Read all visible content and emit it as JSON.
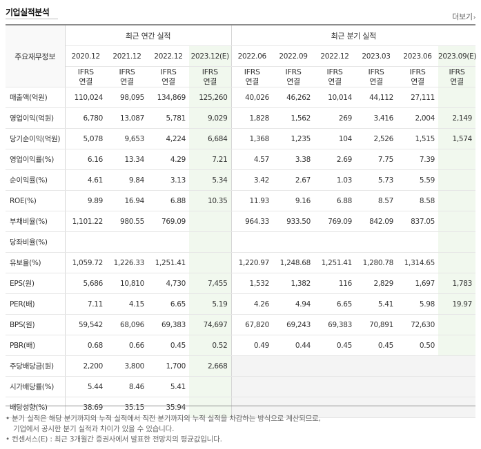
{
  "header": {
    "title": "기업실적분석",
    "more_label": "더보기"
  },
  "table": {
    "row_header_label": "주요재무정보",
    "annual_group_label": "최근 연간 실적",
    "quarter_group_label": "최근 분기 실적",
    "periods": [
      "2020.12",
      "2021.12",
      "2022.12",
      "2023.12(E)",
      "2022.06",
      "2022.09",
      "2022.12",
      "2023.03",
      "2023.06",
      "2023.09(E)"
    ],
    "ifrs_line1": "IFRS",
    "ifrs_line2": "연결",
    "rows": [
      {
        "label": "매출액(억원)",
        "values": [
          "110,024",
          "98,095",
          "134,869",
          "125,260",
          "40,026",
          "46,262",
          "10,014",
          "44,112",
          "27,111",
          ""
        ]
      },
      {
        "label": "영업이익(억원)",
        "values": [
          "6,780",
          "13,087",
          "5,781",
          "9,029",
          "1,828",
          "1,562",
          "269",
          "3,416",
          "2,004",
          "2,149"
        ]
      },
      {
        "label": "당기순이익(억원)",
        "values": [
          "5,078",
          "9,653",
          "4,224",
          "6,684",
          "1,368",
          "1,235",
          "104",
          "2,526",
          "1,515",
          "1,574"
        ]
      },
      {
        "label": "영업이익률(%)",
        "values": [
          "6.16",
          "13.34",
          "4.29",
          "7.21",
          "4.57",
          "3.38",
          "2.69",
          "7.75",
          "7.39",
          ""
        ]
      },
      {
        "label": "순이익률(%)",
        "values": [
          "4.61",
          "9.84",
          "3.13",
          "5.34",
          "3.42",
          "2.67",
          "1.03",
          "5.73",
          "5.59",
          ""
        ]
      },
      {
        "label": "ROE(%)",
        "values": [
          "9.89",
          "16.94",
          "6.88",
          "10.35",
          "11.93",
          "9.16",
          "6.88",
          "8.57",
          "8.58",
          ""
        ]
      },
      {
        "label": "부채비율(%)",
        "values": [
          "1,101.22",
          "980.55",
          "769.09",
          "",
          "964.33",
          "933.50",
          "769.09",
          "842.09",
          "837.05",
          ""
        ]
      },
      {
        "label": "당좌비율(%)",
        "values": [
          "",
          "",
          "",
          "",
          "",
          "",
          "",
          "",
          "",
          ""
        ]
      },
      {
        "label": "유보율(%)",
        "values": [
          "1,059.72",
          "1,226.33",
          "1,251.41",
          "",
          "1,220.97",
          "1,248.68",
          "1,251.41",
          "1,280.78",
          "1,314.65",
          ""
        ]
      },
      {
        "label": "EPS(원)",
        "values": [
          "5,686",
          "10,810",
          "4,730",
          "7,455",
          "1,532",
          "1,382",
          "116",
          "2,829",
          "1,697",
          "1,783"
        ]
      },
      {
        "label": "PER(배)",
        "values": [
          "7.11",
          "4.15",
          "6.65",
          "5.19",
          "4.26",
          "4.94",
          "6.65",
          "5.41",
          "5.98",
          "19.97"
        ]
      },
      {
        "label": "BPS(원)",
        "values": [
          "59,542",
          "68,096",
          "69,383",
          "74,697",
          "67,820",
          "69,243",
          "69,383",
          "70,891",
          "72,630",
          ""
        ]
      },
      {
        "label": "PBR(배)",
        "values": [
          "0.68",
          "0.66",
          "0.45",
          "0.52",
          "0.49",
          "0.44",
          "0.45",
          "0.45",
          "0.50",
          ""
        ]
      },
      {
        "label": "주당배당금(원)",
        "values": [
          "2,200",
          "3,800",
          "1,700",
          "2,668",
          "",
          "",
          "",
          "",
          "",
          ""
        ]
      },
      {
        "label": "시가배당률(%)",
        "values": [
          "5.44",
          "8.46",
          "5.41",
          "",
          "",
          "",
          "",
          "",
          "",
          ""
        ]
      },
      {
        "label": "배당성향(%)",
        "values": [
          "38.69",
          "35.15",
          "35.94",
          "",
          "",
          "",
          "",
          "",
          "",
          ""
        ]
      }
    ]
  },
  "notes": {
    "line1": "분기 실적은 해당 분기까지의 누적 실적에서 직전 분기까지의 누적 실적을 차감하는 방식으로 계산되므로,",
    "line2": "기업에서 공시한 분기 실적과 차이가 있을 수 있습니다.",
    "line3": "컨센서스(E) : 최근 3개월간 증권사에서 발표한 전망치의 평균값입니다."
  }
}
